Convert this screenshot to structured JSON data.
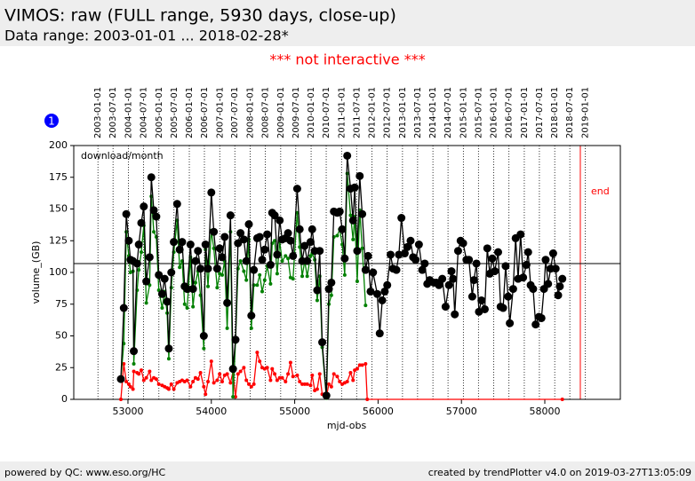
{
  "chart_data": {
    "type": "line",
    "title": "VIMOS: raw (FULL range, 5930 days, close-up)",
    "subtitle": "Data range: 2003-01-01 ... 2018-02-28*",
    "notice": "*** not interactive ***",
    "badge": "1",
    "annotation": "download/month",
    "xlabel": "mjd-obs",
    "ylabel": "volume_(GB)",
    "footer_left": "powered by QC: www.eso.org/HC",
    "footer_right": "created by trendPlotter v4.0 on 2019-03-27T13:05:09",
    "xlim": [
      52350,
      58906
    ],
    "ylim": [
      0,
      200
    ],
    "xticks": [
      53000,
      54000,
      55000,
      56000,
      57000,
      58000
    ],
    "yticks": [
      0,
      25,
      50,
      75,
      100,
      125,
      150,
      175,
      200
    ],
    "reference_line": 107,
    "end_line": {
      "value": 58426,
      "label": "end"
    },
    "date_lines": [
      {
        "value": 52640,
        "label": "2003-01-01"
      },
      {
        "value": 52821,
        "label": "2003-07-01"
      },
      {
        "value": 53005,
        "label": "2004-01-01"
      },
      {
        "value": 53187,
        "label": "2004-07-01"
      },
      {
        "value": 53371,
        "label": "2005-01-01"
      },
      {
        "value": 53552,
        "label": "2005-07-01"
      },
      {
        "value": 53736,
        "label": "2006-01-01"
      },
      {
        "value": 53917,
        "label": "2006-07-01"
      },
      {
        "value": 54101,
        "label": "2007-01-01"
      },
      {
        "value": 54282,
        "label": "2007-07-01"
      },
      {
        "value": 54466,
        "label": "2008-01-01"
      },
      {
        "value": 54648,
        "label": "2008-07-01"
      },
      {
        "value": 54832,
        "label": "2009-01-01"
      },
      {
        "value": 55013,
        "label": "2009-07-01"
      },
      {
        "value": 55197,
        "label": "2010-01-01"
      },
      {
        "value": 55378,
        "label": "2010-07-01"
      },
      {
        "value": 55562,
        "label": "2011-01-01"
      },
      {
        "value": 55743,
        "label": "2011-07-01"
      },
      {
        "value": 55927,
        "label": "2012-01-01"
      },
      {
        "value": 56109,
        "label": "2012-07-01"
      },
      {
        "value": 56293,
        "label": "2013-01-01"
      },
      {
        "value": 56474,
        "label": "2013-07-01"
      },
      {
        "value": 56658,
        "label": "2014-01-01"
      },
      {
        "value": 56839,
        "label": "2014-07-01"
      },
      {
        "value": 57023,
        "label": "2015-01-01"
      },
      {
        "value": 57204,
        "label": "2015-07-01"
      },
      {
        "value": 57388,
        "label": "2016-01-01"
      },
      {
        "value": 57570,
        "label": "2016-07-01"
      },
      {
        "value": 57754,
        "label": "2017-01-01"
      },
      {
        "value": 57935,
        "label": "2017-07-01"
      },
      {
        "value": 58119,
        "label": "2018-01-01"
      },
      {
        "value": 58300,
        "label": "2018-07-01"
      },
      {
        "value": 58484,
        "label": "2019-01-01"
      }
    ],
    "series": [
      {
        "color": "#000000",
        "marker": "large",
        "x": [
          52915,
          52950,
          52980,
          53010,
          53030,
          53060,
          53070,
          53110,
          53130,
          53160,
          53190,
          53220,
          53260,
          53280,
          53310,
          53340,
          53370,
          53410,
          53440,
          53470,
          53490,
          53520,
          53550,
          53590,
          53620,
          53650,
          53680,
          53710,
          53750,
          53780,
          53810,
          53840,
          53870,
          53910,
          53930,
          53960,
          54000,
          54030,
          54070,
          54100,
          54130,
          54160,
          54190,
          54230,
          54260,
          54290,
          54320,
          54350,
          54390,
          54420,
          54450,
          54480,
          54510,
          54550,
          54580,
          54610,
          54640,
          54670,
          54710,
          54730,
          54760,
          54790,
          54820,
          54850,
          54890,
          54920,
          54950,
          54980,
          55030,
          55060,
          55090,
          55120,
          55150,
          55190,
          55210,
          55240,
          55270,
          55300,
          55330,
          55380,
          55410,
          55440,
          55470,
          55510,
          55540,
          55570,
          55600,
          55630,
          55670,
          55700,
          55720,
          55750,
          55780,
          55810,
          55850,
          55880,
          55910,
          55940,
          55990,
          56020,
          56050,
          56080,
          56110,
          56150,
          56180,
          56220,
          56250,
          56280,
          56320,
          56350,
          56390,
          56420,
          56450,
          56490,
          56530,
          56560,
          56590,
          56620,
          56670,
          56700,
          56730,
          56770,
          56810,
          56850,
          56880,
          56900,
          56920,
          56960,
          56990,
          57020,
          57060,
          57090,
          57130,
          57150,
          57180,
          57210,
          57240,
          57280,
          57310,
          57340,
          57370,
          57400,
          57440,
          57470,
          57500,
          57530,
          57560,
          57580,
          57620,
          57650,
          57680,
          57710,
          57740,
          57780,
          57800,
          57830,
          57860,
          57890,
          57930,
          57960,
          57990,
          58010,
          58040,
          58070,
          58100,
          58130,
          58160,
          58180,
          58210
        ],
        "values": [
          16,
          72,
          146,
          125,
          110,
          109,
          38,
          107,
          122,
          139,
          152,
          93,
          112,
          175,
          149,
          144,
          98,
          83,
          95,
          77,
          40,
          100,
          124,
          154,
          118,
          124,
          89,
          87,
          122,
          87,
          109,
          117,
          103,
          50,
          122,
          103,
          163,
          132,
          103,
          119,
          112,
          128,
          76,
          145,
          24,
          47,
          123,
          131,
          126,
          109,
          138,
          66,
          102,
          127,
          128,
          110,
          118,
          130,
          106,
          147,
          145,
          114,
          141,
          126,
          127,
          131,
          125,
          113,
          166,
          134,
          109,
          121,
          109,
          124,
          134,
          117,
          86,
          117,
          45,
          3,
          87,
          92,
          148,
          147,
          148,
          134,
          111,
          192,
          166,
          141,
          167,
          117,
          176,
          146,
          102,
          113,
          85,
          100,
          83,
          52,
          78,
          85,
          90,
          114,
          103,
          102,
          114,
          143,
          115,
          120,
          125,
          112,
          110,
          122,
          102,
          107,
          91,
          94,
          92,
          92,
          90,
          95,
          73,
          90,
          101,
          95,
          67,
          117,
          125,
          123,
          110,
          110,
          81,
          94,
          107,
          69,
          78,
          71,
          119,
          99,
          111,
          101,
          116,
          73,
          72,
          105,
          81,
          60,
          87,
          127,
          95,
          130,
          96,
          106,
          116,
          90,
          87,
          59,
          65,
          64,
          87,
          110,
          91,
          103,
          115,
          103,
          82,
          89,
          95
        ]
      },
      {
        "color": "#008000",
        "marker": "small",
        "x": [
          52915,
          52950,
          52980,
          53010,
          53030,
          53060,
          53070,
          53110,
          53130,
          53160,
          53190,
          53220,
          53260,
          53280,
          53310,
          53340,
          53370,
          53410,
          53440,
          53470,
          53490,
          53520,
          53550,
          53590,
          53620,
          53650,
          53680,
          53710,
          53750,
          53780,
          53810,
          53840,
          53870,
          53910,
          53930,
          53960,
          54000,
          54030,
          54070,
          54100,
          54130,
          54160,
          54190,
          54230,
          54260,
          54290,
          54320,
          54350,
          54390,
          54420,
          54450,
          54480,
          54510,
          54550,
          54580,
          54610,
          54640,
          54670,
          54710,
          54730,
          54760,
          54790,
          54820,
          54850,
          54890,
          54920,
          54950,
          54980,
          55030,
          55060,
          55090,
          55120,
          55150,
          55190,
          55210,
          55240,
          55270,
          55300,
          55330,
          55380,
          55410,
          55440,
          55470,
          55510,
          55540,
          55570,
          55600,
          55630,
          55670,
          55700,
          55720,
          55750,
          55780,
          55810,
          55850
        ],
        "values": [
          16,
          44,
          132,
          113,
          100,
          101,
          28,
          86,
          102,
          116,
          137,
          76,
          90,
          160,
          132,
          128,
          86,
          72,
          85,
          68,
          32,
          88,
          116,
          141,
          104,
          109,
          75,
          72,
          112,
          73,
          92,
          101,
          82,
          40,
          118,
          89,
          133,
          119,
          88,
          99,
          98,
          109,
          56,
          132,
          2,
          45,
          103,
          109,
          101,
          94,
          126,
          56,
          90,
          90,
          98,
          85,
          94,
          105,
          91,
          123,
          125,
          99,
          124,
          109,
          113,
          111,
          96,
          95,
          147,
          120,
          97,
          109,
          97,
          113,
          115,
          110,
          78,
          97,
          41,
          1,
          75,
          82,
          128,
          129,
          134,
          122,
          98,
          178,
          145,
          126,
          144,
          93,
          149,
          119,
          74
        ]
      },
      {
        "color": "#ff0000",
        "marker": "small",
        "x": [
          52915,
          52950,
          52980,
          53010,
          53030,
          53060,
          53070,
          53110,
          53130,
          53160,
          53190,
          53220,
          53260,
          53280,
          53310,
          53340,
          53370,
          53410,
          53440,
          53470,
          53490,
          53520,
          53550,
          53590,
          53620,
          53650,
          53680,
          53710,
          53750,
          53780,
          53810,
          53840,
          53870,
          53910,
          53930,
          53960,
          54000,
          54030,
          54070,
          54100,
          54130,
          54160,
          54190,
          54230,
          54260,
          54290,
          54320,
          54350,
          54390,
          54420,
          54450,
          54480,
          54510,
          54550,
          54580,
          54610,
          54640,
          54670,
          54710,
          54730,
          54760,
          54790,
          54820,
          54850,
          54890,
          54920,
          54950,
          54980,
          55030,
          55060,
          55090,
          55120,
          55150,
          55190,
          55210,
          55240,
          55270,
          55300,
          55330,
          55380,
          55410,
          55440,
          55470,
          55510,
          55540,
          55570,
          55600,
          55630,
          55670,
          55700,
          55720,
          55750,
          55780,
          55810,
          55850,
          55870,
          58210
        ],
        "values": [
          0,
          28,
          14,
          12,
          10,
          8,
          22,
          21,
          20,
          23,
          15,
          17,
          22,
          15,
          17,
          16,
          12,
          11,
          10,
          9,
          8,
          12,
          8,
          13,
          14,
          15,
          14,
          15,
          10,
          14,
          17,
          16,
          21,
          10,
          4,
          14,
          30,
          13,
          15,
          20,
          14,
          19,
          20,
          13,
          22,
          2,
          20,
          22,
          25,
          15,
          12,
          10,
          12,
          37,
          30,
          25,
          24,
          25,
          15,
          24,
          20,
          15,
          17,
          17,
          14,
          20,
          29,
          18,
          19,
          14,
          12,
          12,
          12,
          11,
          19,
          7,
          8,
          20,
          4,
          2,
          12,
          10,
          20,
          18,
          14,
          12,
          13,
          14,
          21,
          15,
          23,
          24,
          27,
          27,
          28,
          0,
          0
        ]
      }
    ]
  }
}
